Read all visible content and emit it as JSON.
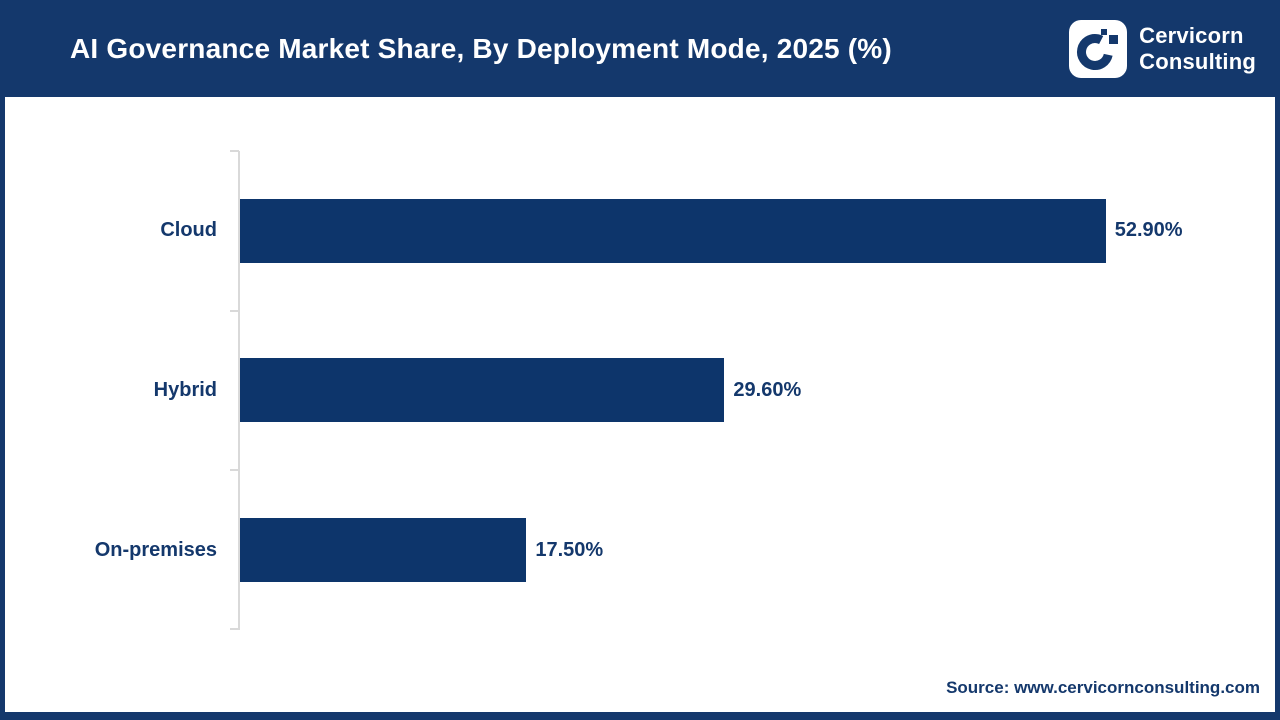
{
  "header": {
    "title": "AI Governance Market Share, By Deployment Mode, 2025 (%)"
  },
  "logo": {
    "brand_line1": "Cervicorn",
    "brand_line2": "Consulting",
    "icon": "cervicorn-c-icon"
  },
  "colors": {
    "navy": "#14386C",
    "bar": "#0D356B",
    "axis_gray": "#D9D9D9",
    "background": "#FFFFFF",
    "title_text": "#FFFFFF"
  },
  "chart_data": {
    "type": "bar",
    "orientation": "horizontal",
    "title": "AI Governance Market Share, By Deployment Mode, 2025 (%)",
    "categories": [
      "Cloud",
      "Hybrid",
      "On-premises"
    ],
    "values": [
      52.9,
      29.6,
      17.5
    ],
    "value_labels": [
      "52.90%",
      "29.60%",
      "17.50%"
    ],
    "unit": "%",
    "xlabel": "",
    "ylabel": "",
    "xlim": [
      0,
      63
    ],
    "grid": false,
    "legend": false
  },
  "source": {
    "label": "Source: www.cervicornconsulting.com"
  }
}
